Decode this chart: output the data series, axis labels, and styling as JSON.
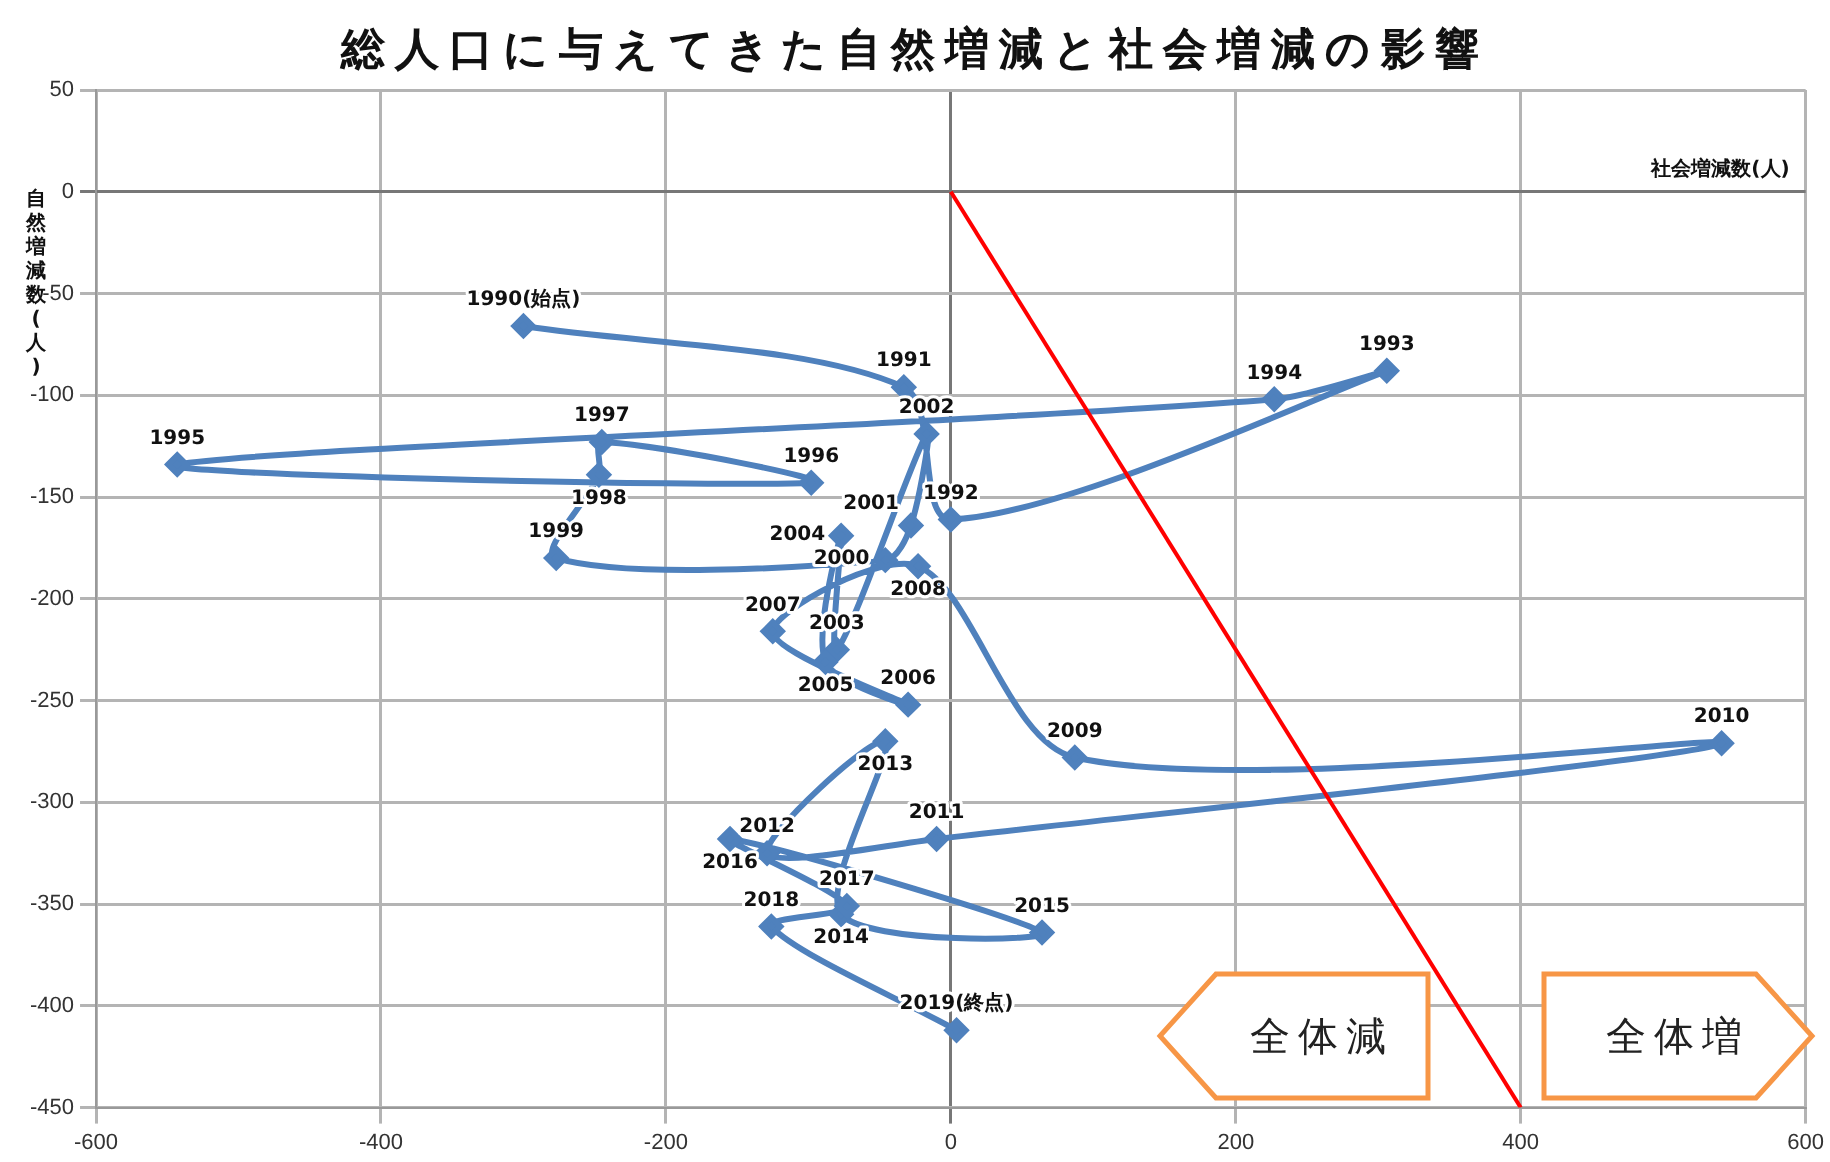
{
  "chart_data": {
    "type": "line",
    "title": "総人口に与えてきた自然増減と社会増減の影響",
    "xlabel": "社会増減数(人)",
    "ylabel": "自然増減数(人)",
    "xlim": [
      -600,
      600
    ],
    "xticks": [
      -600,
      -400,
      -200,
      0,
      200,
      400,
      600
    ],
    "ylim": [
      -450,
      50
    ],
    "yticks": [
      -450,
      -400,
      -350,
      -300,
      -250,
      -200,
      -150,
      -100,
      -50,
      0,
      50
    ],
    "grid": true,
    "legend": false,
    "marker": "diamond",
    "series": [
      {
        "color": "#4f81bd",
        "x": [
          -300,
          -33,
          0,
          306,
          227,
          -543,
          -98,
          -245,
          -247,
          -277,
          -46,
          -28,
          -17,
          -80,
          -77,
          -88,
          -30,
          -125,
          -23,
          87,
          541,
          -10,
          -129,
          -46,
          -77,
          64,
          -155,
          -73,
          -126,
          4
        ],
        "values": [
          -66,
          -96,
          -161,
          -88,
          -102,
          -134,
          -143,
          -123,
          -139,
          -180,
          -181,
          -164,
          -119,
          -225,
          -169,
          -231,
          -252,
          -216,
          -184,
          -278,
          -271,
          -318,
          -325,
          -270,
          -355,
          -364,
          -318,
          -351,
          -361,
          -412
        ]
      },
      {
        "type": "line",
        "marker": "none",
        "color": "#ff0000",
        "x": [
          0,
          400
        ],
        "values": [
          0,
          -450
        ]
      }
    ],
    "annotations": [
      {
        "text": "1990(始点)",
        "x": -300,
        "y": -66
      },
      {
        "text": "1991",
        "x": -33,
        "y": -96
      },
      {
        "text": "1992",
        "x": 0,
        "y": -161
      },
      {
        "text": "1993",
        "x": 306,
        "y": -88
      },
      {
        "text": "1994",
        "x": 227,
        "y": -102
      },
      {
        "text": "1995",
        "x": -543,
        "y": -134
      },
      {
        "text": "1996",
        "x": -98,
        "y": -143
      },
      {
        "text": "1997",
        "x": -245,
        "y": -123
      },
      {
        "text": "1998",
        "x": -247,
        "y": -139
      },
      {
        "text": "1999",
        "x": -277,
        "y": -180
      },
      {
        "text": "2000",
        "x": -46,
        "y": -181
      },
      {
        "text": "2001",
        "x": -28,
        "y": -164
      },
      {
        "text": "2002",
        "x": -17,
        "y": -119
      },
      {
        "text": "2003",
        "x": -80,
        "y": -225
      },
      {
        "text": "2004",
        "x": -77,
        "y": -169
      },
      {
        "text": "2005",
        "x": -88,
        "y": -231
      },
      {
        "text": "2006",
        "x": -30,
        "y": -252
      },
      {
        "text": "2007",
        "x": -125,
        "y": -216
      },
      {
        "text": "2008",
        "x": -23,
        "y": -184
      },
      {
        "text": "2009",
        "x": 87,
        "y": -278
      },
      {
        "text": "2010",
        "x": 541,
        "y": -271
      },
      {
        "text": "2011",
        "x": -10,
        "y": -318
      },
      {
        "text": "2012",
        "x": -129,
        "y": -325
      },
      {
        "text": "2013",
        "x": -46,
        "y": -270
      },
      {
        "text": "2014",
        "x": -77,
        "y": -355
      },
      {
        "text": "2015",
        "x": 64,
        "y": -364
      },
      {
        "text": "2016",
        "x": -155,
        "y": -318
      },
      {
        "text": "2017",
        "x": -73,
        "y": -351
      },
      {
        "text": "2018",
        "x": -126,
        "y": -361
      },
      {
        "text": "2019(終点)",
        "x": 4,
        "y": -412
      },
      "全体減",
      "全体増"
    ]
  }
}
